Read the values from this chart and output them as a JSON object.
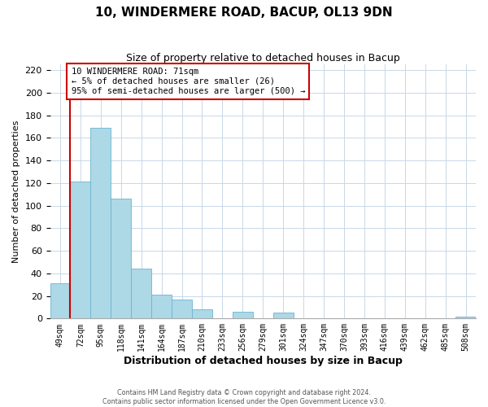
{
  "title": "10, WINDERMERE ROAD, BACUP, OL13 9DN",
  "subtitle": "Size of property relative to detached houses in Bacup",
  "xlabel": "Distribution of detached houses by size in Bacup",
  "ylabel": "Number of detached properties",
  "bar_labels": [
    "49sqm",
    "72sqm",
    "95sqm",
    "118sqm",
    "141sqm",
    "164sqm",
    "187sqm",
    "210sqm",
    "233sqm",
    "256sqm",
    "279sqm",
    "301sqm",
    "324sqm",
    "347sqm",
    "370sqm",
    "393sqm",
    "416sqm",
    "439sqm",
    "462sqm",
    "485sqm",
    "508sqm"
  ],
  "bar_values": [
    31,
    121,
    169,
    106,
    44,
    21,
    17,
    8,
    0,
    6,
    0,
    5,
    0,
    0,
    0,
    0,
    0,
    0,
    0,
    0,
    2
  ],
  "bar_color": "#add8e6",
  "bar_edgecolor": "#6ab4d2",
  "ylim_max": 225,
  "yticks": [
    0,
    20,
    40,
    60,
    80,
    100,
    120,
    140,
    160,
    180,
    200,
    220
  ],
  "vline_x": 1,
  "vline_color": "#cc0000",
  "annotation_title": "10 WINDERMERE ROAD: 71sqm",
  "annotation_line1": "← 5% of detached houses are smaller (26)",
  "annotation_line2": "95% of semi-detached houses are larger (500) →",
  "annotation_box_facecolor": "#ffffff",
  "annotation_box_edgecolor": "#cc0000",
  "footer1": "Contains HM Land Registry data © Crown copyright and database right 2024.",
  "footer2": "Contains public sector information licensed under the Open Government Licence v3.0.",
  "background_color": "#ffffff",
  "grid_color": "#c8d8e8",
  "title_fontsize": 11,
  "subtitle_fontsize": 9
}
